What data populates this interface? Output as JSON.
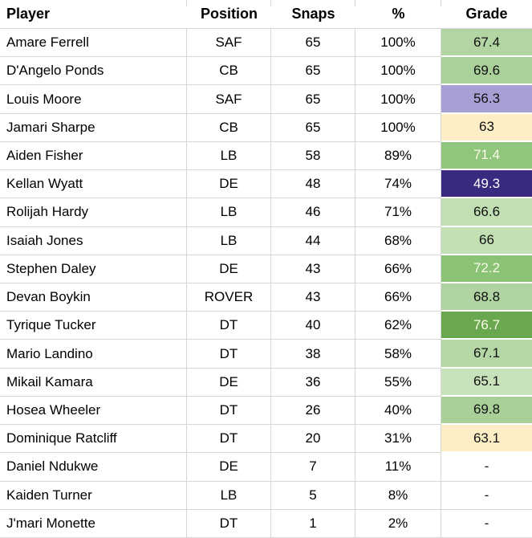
{
  "table": {
    "headers": [
      "Player",
      "Position",
      "Snaps",
      "%",
      "Grade"
    ],
    "columns": [
      "player",
      "position",
      "snaps",
      "pct",
      "grade"
    ],
    "rows": [
      {
        "player": "Amare Ferrell",
        "position": "SAF",
        "snaps": "65",
        "pct": "100%",
        "grade": "67.4",
        "grade_bg": "#b3d5a4",
        "grade_fg": "#111111"
      },
      {
        "player": "D'Angelo Ponds",
        "position": "CB",
        "snaps": "65",
        "pct": "100%",
        "grade": "69.6",
        "grade_bg": "#aad19a",
        "grade_fg": "#111111"
      },
      {
        "player": "Louis Moore",
        "position": "SAF",
        "snaps": "65",
        "pct": "100%",
        "grade": "56.3",
        "grade_bg": "#a89fd4",
        "grade_fg": "#111111"
      },
      {
        "player": "Jamari Sharpe",
        "position": "CB",
        "snaps": "65",
        "pct": "100%",
        "grade": "63",
        "grade_bg": "#fdeec6",
        "grade_fg": "#111111"
      },
      {
        "player": "Aiden Fisher",
        "position": "LB",
        "snaps": "58",
        "pct": "89%",
        "grade": "71.4",
        "grade_bg": "#8fc57c",
        "grade_fg": "#fcfbe7"
      },
      {
        "player": "Kellan Wyatt",
        "position": "DE",
        "snaps": "48",
        "pct": "74%",
        "grade": "49.3",
        "grade_bg": "#3a2a7f",
        "grade_fg": "#ffffff"
      },
      {
        "player": "Rolijah Hardy",
        "position": "LB",
        "snaps": "46",
        "pct": "71%",
        "grade": "66.6",
        "grade_bg": "#c1dfb3",
        "grade_fg": "#111111"
      },
      {
        "player": "Isaiah Jones",
        "position": "LB",
        "snaps": "44",
        "pct": "68%",
        "grade": "66",
        "grade_bg": "#c3e0b5",
        "grade_fg": "#111111"
      },
      {
        "player": "Stephen Daley",
        "position": "DE",
        "snaps": "43",
        "pct": "66%",
        "grade": "72.2",
        "grade_bg": "#8ac276",
        "grade_fg": "#fcfbe7"
      },
      {
        "player": "Devan Boykin",
        "position": "ROVER",
        "snaps": "43",
        "pct": "66%",
        "grade": "68.8",
        "grade_bg": "#b0d4a1",
        "grade_fg": "#111111"
      },
      {
        "player": "Tyrique Tucker",
        "position": "DT",
        "snaps": "40",
        "pct": "62%",
        "grade": "76.7",
        "grade_bg": "#6aa84f",
        "grade_fg": "#fcfbe7"
      },
      {
        "player": "Mario Landino",
        "position": "DT",
        "snaps": "38",
        "pct": "58%",
        "grade": "67.1",
        "grade_bg": "#b5d7a6",
        "grade_fg": "#111111"
      },
      {
        "player": "Mikail Kamara",
        "position": "DE",
        "snaps": "36",
        "pct": "55%",
        "grade": "65.1",
        "grade_bg": "#c8e2bb",
        "grade_fg": "#111111"
      },
      {
        "player": "Hosea Wheeler",
        "position": "DT",
        "snaps": "26",
        "pct": "40%",
        "grade": "69.8",
        "grade_bg": "#a9d099",
        "grade_fg": "#111111"
      },
      {
        "player": "Dominique Ratcliff",
        "position": "DT",
        "snaps": "20",
        "pct": "31%",
        "grade": "63.1",
        "grade_bg": "#fcedc4",
        "grade_fg": "#111111"
      },
      {
        "player": "Daniel Ndukwe",
        "position": "DE",
        "snaps": "7",
        "pct": "11%",
        "grade": "-",
        "grade_bg": "#ffffff",
        "grade_fg": "#111111"
      },
      {
        "player": "Kaiden Turner",
        "position": "LB",
        "snaps": "5",
        "pct": "8%",
        "grade": "-",
        "grade_bg": "#ffffff",
        "grade_fg": "#111111"
      },
      {
        "player": "J'mari Monette",
        "position": "DT",
        "snaps": "1",
        "pct": "2%",
        "grade": "-",
        "grade_bg": "#ffffff",
        "grade_fg": "#111111"
      }
    ]
  },
  "colors": {
    "gridline": "#d6d6d6",
    "header_text": "#000000",
    "body_text": "#000000",
    "grade_scale_low": "#3a2a7f",
    "grade_scale_mid": "#fdeec6",
    "grade_scale_high": "#6aa84f"
  }
}
